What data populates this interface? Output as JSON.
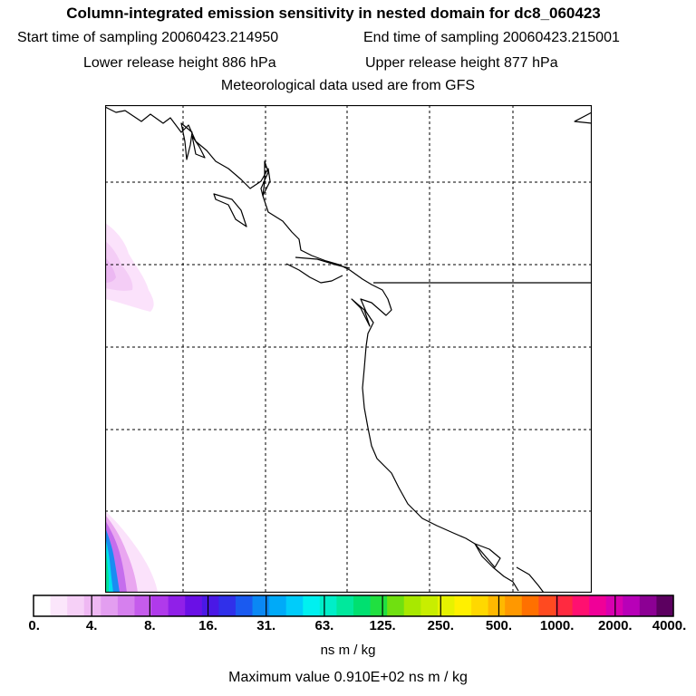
{
  "header": {
    "title": "Column-integrated emission sensitivity in nested domain for dc8_060423",
    "start_label": "Start time of sampling 20060423.214950",
    "end_label": "End time of sampling 20060423.215001",
    "lower_label": "Lower release height  886 hPa",
    "upper_label": "Upper release height  877 hPa",
    "met_label": "Meteorological data used are from GFS"
  },
  "colorbar": {
    "tick_labels": [
      "0.",
      "4.",
      "8.",
      "16.",
      "31.",
      "63.",
      "125.",
      "250.",
      "500.",
      "1000.",
      "2000.",
      "4000."
    ],
    "unit_label": "ns m / kg",
    "colors": [
      "#ffffff",
      "#fbe6fb",
      "#f6d0f7",
      "#efb8f3",
      "#e39ef0",
      "#d680ee",
      "#c55cec",
      "#b03aeb",
      "#9020e8",
      "#6a10e6",
      "#4a18e6",
      "#3030ea",
      "#1a5af0",
      "#0a88f4",
      "#00aaf8",
      "#00ccfa",
      "#00f0f0",
      "#00eec8",
      "#00e89c",
      "#00e070",
      "#20e040",
      "#70e010",
      "#a8e800",
      "#c8ee00",
      "#e6f200",
      "#fff000",
      "#ffd800",
      "#ffb800",
      "#ff9800",
      "#ff7000",
      "#ff4a20",
      "#ff2a40",
      "#ff1070",
      "#f00098",
      "#d800b0",
      "#b800b8",
      "#8c0094",
      "#5c0060"
    ]
  },
  "footer": {
    "max_label": "Maximum value  0.910E+02 ns m / kg"
  }
}
